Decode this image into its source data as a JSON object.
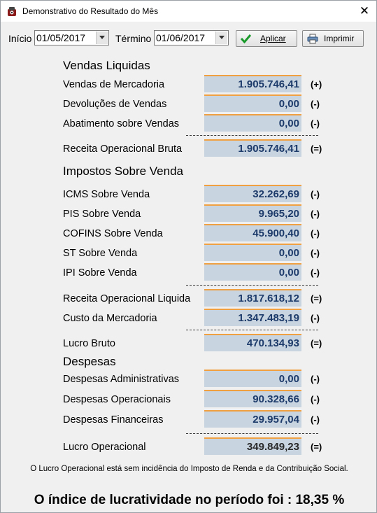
{
  "window": {
    "title": "Demonstrativo do Resultado do Mês",
    "close": "✕"
  },
  "filters": {
    "inicio_label": "Início",
    "inicio_value": "01/05/2017",
    "termino_label": "Término",
    "termino_value": "01/06/2017",
    "aplicar_label": "Aplicar",
    "imprimir_label": "Imprimir"
  },
  "sections": {
    "vendas": "Vendas Liquidas",
    "impostos": "Impostos Sobre Venda",
    "despesas": "Despesas"
  },
  "rows": {
    "vendas_mercadoria": {
      "label": "Vendas de Mercadoria",
      "value": "1.905.746,41",
      "sign": "(+)"
    },
    "devolucoes": {
      "label": "Devoluções de Vendas",
      "value": "0,00",
      "sign": "(-)"
    },
    "abatimento": {
      "label": "Abatimento sobre Vendas",
      "value": "0,00",
      "sign": "(-)"
    },
    "receita_bruta": {
      "label": "Receita Operacional Bruta",
      "value": "1.905.746,41",
      "sign": "(=)"
    },
    "icms": {
      "label": "ICMS Sobre Venda",
      "value": "32.262,69",
      "sign": "(-)"
    },
    "pis": {
      "label": "PIS Sobre Venda",
      "value": "9.965,20",
      "sign": "(-)"
    },
    "cofins": {
      "label": "COFINS Sobre Venda",
      "value": "45.900,40",
      "sign": "(-)"
    },
    "st": {
      "label": "ST Sobre Venda",
      "value": "0,00",
      "sign": "(-)"
    },
    "ipi": {
      "label": "IPI Sobre Venda",
      "value": "0,00",
      "sign": "(-)"
    },
    "receita_liquida": {
      "label": "Receita Operacional Liquida",
      "value": "1.817.618,12",
      "sign": "(=)"
    },
    "custo": {
      "label": "Custo da Mercadoria",
      "value": "1.347.483,19",
      "sign": "(-)"
    },
    "lucro_bruto": {
      "label": "Lucro Bruto",
      "value": "470.134,93",
      "sign": "(=)"
    },
    "desp_admin": {
      "label": "Despesas Administrativas",
      "value": "0,00",
      "sign": "(-)"
    },
    "desp_oper": {
      "label": "Despesas Operacionais",
      "value": "90.328,66",
      "sign": "(-)"
    },
    "desp_fin": {
      "label": "Despesas Financeiras",
      "value": "29.957,04",
      "sign": "(-)"
    },
    "lucro_operacional": {
      "label": "Lucro Operacional",
      "value": "349.849,23",
      "sign": "(=)"
    }
  },
  "footer": {
    "note": "O Lucro Operacional  está sem incidência do Imposto de Renda e da Contribuição Social.",
    "index": "O índice de lucratividade no período foi : 18,35 %"
  },
  "colors": {
    "value_box": "#c8d4e0",
    "value_top_border": "#f0a040",
    "value_text": "#1c3a6a"
  }
}
